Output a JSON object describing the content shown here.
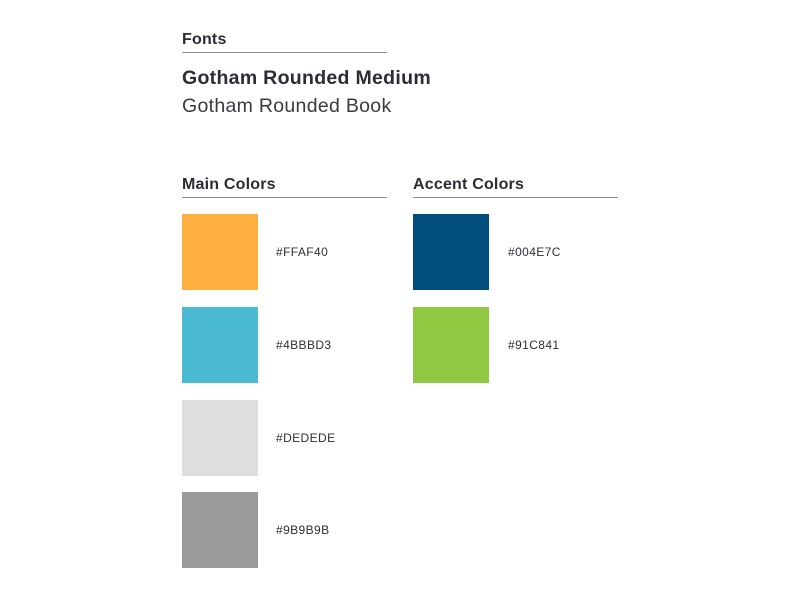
{
  "fonts": {
    "heading": "Fonts",
    "medium": "Gotham Rounded Medium",
    "book": "Gotham Rounded Book"
  },
  "main_colors": {
    "heading": "Main Colors",
    "swatches": [
      {
        "hex": "#FFAF40",
        "color": "#FFAF40"
      },
      {
        "hex": "#4BBBD3",
        "color": "#4BBBD3"
      },
      {
        "hex": "#DEDEDE",
        "color": "#DEDEDE"
      },
      {
        "hex": "#9B9B9B",
        "color": "#9B9B9B"
      }
    ]
  },
  "accent_colors": {
    "heading": "Accent Colors",
    "swatches": [
      {
        "hex": "#004E7C",
        "color": "#004E7C"
      },
      {
        "hex": "#91C841",
        "color": "#91C841"
      }
    ]
  }
}
